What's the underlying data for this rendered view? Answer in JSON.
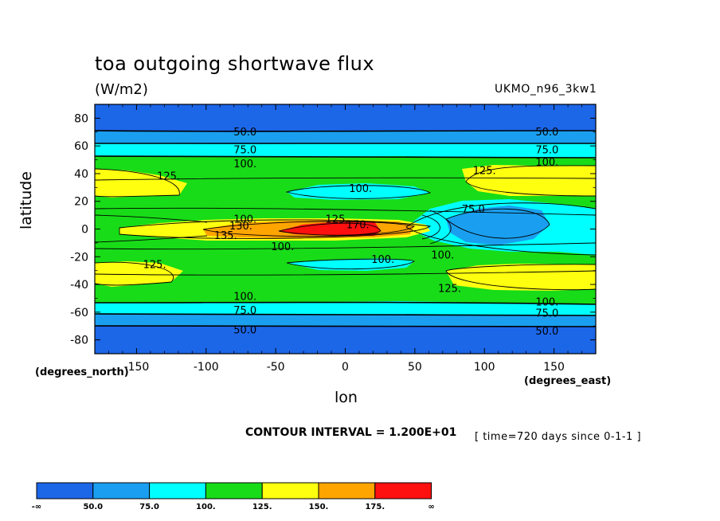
{
  "title": "toa outgoing shortwave flux",
  "units": "(W/m2)",
  "model": "UKMO_n96_3kw1",
  "y_axis_name": "latitude",
  "y_axis_units": "(degrees_north)",
  "x_axis_name": "lon",
  "x_axis_units": "(degrees_east)",
  "contour_interval": "CONTOUR INTERVAL = 1.200E+01",
  "time": "[ time=720 days since 0-1-1 ]",
  "colors": {
    "band_lt50": "#1c66e8",
    "band_50_75": "#1a9ff0",
    "band_75_100": "#00ffff",
    "band_100_125": "#18dc18",
    "band_125_150": "#ffff10",
    "band_150_175": "#ffa500",
    "band_gt175": "#ff1010"
  },
  "chart_data": {
    "type": "contour",
    "title": "toa outgoing shortwave flux",
    "units": "(W/m2)",
    "xlabel": "lon",
    "ylabel": "latitude",
    "xlim": [
      -180,
      180
    ],
    "ylim": [
      -90,
      90
    ],
    "x_ticks": [
      "-150",
      "-100",
      "-50",
      "0",
      "50",
      "100",
      "150"
    ],
    "x_tick_values": [
      -150,
      -100,
      -50,
      0,
      50,
      100,
      150
    ],
    "y_ticks": [
      "80",
      "60",
      "40",
      "20",
      "0",
      "-20",
      "-40",
      "-60",
      "-80"
    ],
    "y_tick_values": [
      80,
      60,
      40,
      20,
      0,
      -20,
      -40,
      -60,
      -80
    ],
    "contour_labels": [
      {
        "text": "50.0",
        "lon": -72,
        "lat": 70
      },
      {
        "text": "50.0",
        "lon": 145,
        "lat": 70
      },
      {
        "text": "75.0",
        "lon": -72,
        "lat": 57
      },
      {
        "text": "75.0",
        "lon": 145,
        "lat": 57
      },
      {
        "text": "100.",
        "lon": -72,
        "lat": 47
      },
      {
        "text": "100.",
        "lon": 145,
        "lat": 48
      },
      {
        "text": "125.",
        "lon": -127,
        "lat": 38
      },
      {
        "text": "125.",
        "lon": 100,
        "lat": 42
      },
      {
        "text": "100.",
        "lon": 11,
        "lat": 29
      },
      {
        "text": "75.0",
        "lon": 92,
        "lat": 14
      },
      {
        "text": "100.",
        "lon": -72,
        "lat": 7
      },
      {
        "text": "130.",
        "lon": -75,
        "lat": 2
      },
      {
        "text": "135.",
        "lon": -86,
        "lat": -5
      },
      {
        "text": "125.",
        "lon": -6,
        "lat": 7
      },
      {
        "text": "170.",
        "lon": 9,
        "lat": 3
      },
      {
        "text": "100.",
        "lon": -45,
        "lat": -13
      },
      {
        "text": "100.",
        "lon": 27,
        "lat": -22
      },
      {
        "text": "100.",
        "lon": 70,
        "lat": -19
      },
      {
        "text": "125.",
        "lon": -137,
        "lat": -26
      },
      {
        "text": "125.",
        "lon": 75,
        "lat": -43
      },
      {
        "text": "100.",
        "lon": -72,
        "lat": -49
      },
      {
        "text": "100.",
        "lon": 145,
        "lat": -53
      },
      {
        "text": "75.0",
        "lon": -72,
        "lat": -59
      },
      {
        "text": "75.0",
        "lon": 145,
        "lat": -61
      },
      {
        "text": "50.0",
        "lon": -72,
        "lat": -73
      },
      {
        "text": "50.0",
        "lon": 145,
        "lat": -74
      }
    ],
    "colorbar": {
      "labels": [
        "-∞",
        "50.0",
        "75.0",
        "100.",
        "125.",
        "150.",
        "175.",
        "∞"
      ],
      "colors": [
        "#1c66e8",
        "#1a9ff0",
        "#00ffff",
        "#18dc18",
        "#ffff10",
        "#ffa500",
        "#ff1010"
      ]
    }
  }
}
